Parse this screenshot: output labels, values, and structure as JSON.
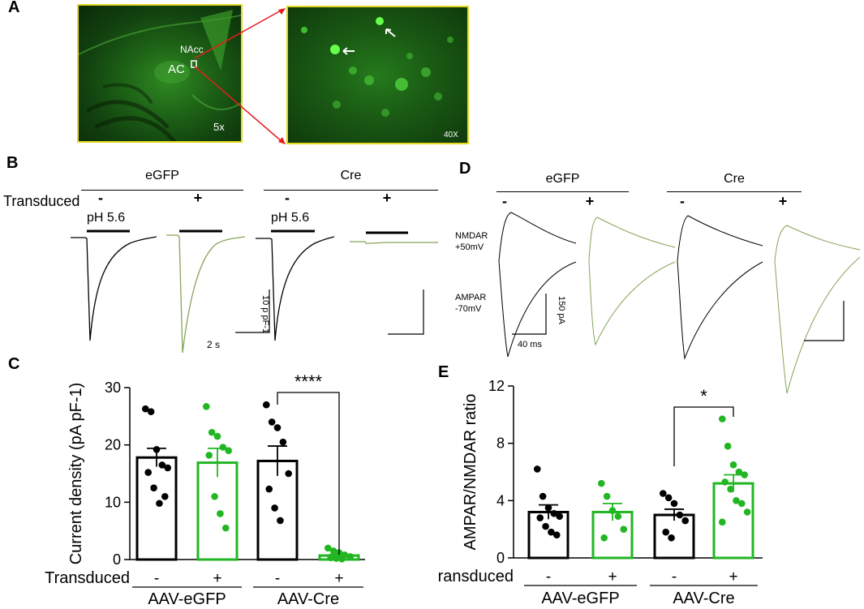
{
  "panels": {
    "a": "A",
    "b": "B",
    "c": "C",
    "d": "D",
    "e": "E"
  },
  "panel_a": {
    "label_nacc": "NAcc",
    "label_ac": "AC",
    "mag_left": "5x",
    "mag_right": "40X"
  },
  "panel_b": {
    "group_egfp": "eGFP",
    "group_cre": "Cre",
    "transduced_label": "Transduced",
    "minus": "-",
    "plus": "+",
    "ph": "pH 5.6",
    "ph2": "pH 5.6",
    "scale_y": "10 p pF-1",
    "scale_x": "2 s"
  },
  "panel_d": {
    "group_egfp": "eGFP",
    "group_cre": "Cre",
    "minus": "-",
    "plus": "+",
    "nmdar_line1": "NMDAR",
    "nmdar_line2": "+50mV",
    "ampar_line1": "AMPAR",
    "ampar_line2": "-70mV",
    "scale_y": "150 pA",
    "scale_x": "40 ms"
  },
  "colors": {
    "black": "#000000",
    "green": "#22b622",
    "trace_green": "#86a45a",
    "stain": "#3fc23f"
  },
  "chart_data": [
    {
      "type": "bar",
      "panel": "C",
      "ylabel": "Current density (pA pF-1)",
      "ylim": [
        0,
        30
      ],
      "yticks": [
        0,
        10,
        20,
        30
      ],
      "categories": [
        "-",
        "+",
        "-",
        "+"
      ],
      "row_label": "Transduced",
      "groups": [
        "AAV-eGFP",
        "AAV-Cre"
      ],
      "bar_colors": [
        "#000000",
        "#22b622",
        "#000000",
        "#22b622"
      ],
      "values": [
        17.8,
        16.9,
        17.2,
        0.7
      ],
      "sem": [
        1.6,
        2.5,
        2.6,
        0.2
      ],
      "points": [
        [
          26.3,
          25.8,
          19.2,
          16.5,
          16.0,
          15.2,
          12.5,
          9.8,
          11.0
        ],
        [
          26.7,
          22.2,
          21.5,
          19.6,
          19.0,
          18.2,
          11.0,
          8.0,
          5.5
        ],
        [
          27.0,
          24.0,
          23.0,
          20.5,
          15.0,
          12.3,
          9.0,
          6.8
        ],
        [
          2.0,
          1.5,
          1.2,
          0.8,
          0.5,
          0.3,
          0.2,
          0.1
        ]
      ],
      "significance": {
        "from": 2,
        "to": 3,
        "label": "****"
      }
    },
    {
      "type": "bar",
      "panel": "E",
      "ylabel": "AMPAR/NMDAR ratio",
      "ylim": [
        0,
        12
      ],
      "yticks": [
        0,
        4,
        8,
        12
      ],
      "categories": [
        "-",
        "+",
        "-",
        "+"
      ],
      "row_label": "Transduced",
      "groups": [
        "AAV-eGFP",
        "AAV-Cre"
      ],
      "bar_colors": [
        "#000000",
        "#22b622",
        "#000000",
        "#22b622"
      ],
      "values": [
        3.2,
        3.2,
        3.0,
        5.2
      ],
      "sem": [
        0.5,
        0.6,
        0.4,
        0.6
      ],
      "points": [
        [
          6.2,
          4.3,
          3.5,
          3.1,
          2.9,
          2.8,
          2.2,
          1.8,
          1.6
        ],
        [
          5.2,
          4.3,
          3.3,
          2.9,
          2.0,
          1.4
        ],
        [
          4.5,
          4.2,
          3.8,
          3.0,
          2.6,
          1.8,
          1.4
        ],
        [
          9.7,
          7.8,
          6.5,
          6.0,
          5.8,
          5.3,
          4.8,
          4.0,
          3.8,
          3.2,
          2.5
        ]
      ],
      "significance": {
        "from": 2,
        "to": 3,
        "label": "*"
      }
    }
  ]
}
